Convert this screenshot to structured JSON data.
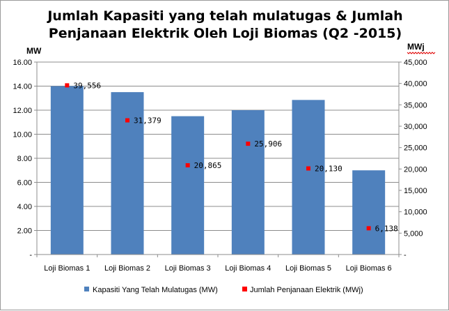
{
  "chart_data": {
    "type": "bar",
    "title_line1": "Jumlah Kapasiti yang telah mulatugas & Jumlah",
    "title_line2": "Penjanaan Elektrik Oleh Loji Biomas (Q2 -2015)",
    "y_left_unit": "MW",
    "y_right_unit": "MWj",
    "categories": [
      "Loji Biomas 1",
      "Loji Biomas 2",
      "Loji Biomas 3",
      "Loji Biomas 4",
      "Loji Biomas 5",
      "Loji Biomas 6"
    ],
    "y_left_ticks": [
      "-",
      "2.00",
      "4.00",
      "6.00",
      "8.00",
      "10.00",
      "12.00",
      "14.00",
      "16.00"
    ],
    "y_right_ticks": [
      "-",
      "5,000",
      "10,000",
      "15,000",
      "20,000",
      "25,000",
      "30,000",
      "35,000",
      "40,000",
      "45,000"
    ],
    "ylim_left": [
      0,
      16
    ],
    "ylim_right": [
      0,
      45000
    ],
    "series": [
      {
        "name": "Kapasiti Yang Telah Mulatugas (MW)",
        "type": "bar",
        "axis": "left",
        "color": "#4f81bd",
        "values": [
          14.0,
          13.5,
          11.5,
          12.0,
          12.85,
          7.0
        ]
      },
      {
        "name": "Jumlah Penjanaan Elektrik (MWj)",
        "type": "marker",
        "axis": "right",
        "color": "#ff0000",
        "values": [
          39556,
          31379,
          20865,
          25906,
          20130,
          6138
        ],
        "labels": [
          "39,556",
          "31,379",
          "20,865",
          "25,906",
          "20,130",
          "6,138"
        ]
      }
    ],
    "grid": true,
    "legend_position": "bottom"
  }
}
